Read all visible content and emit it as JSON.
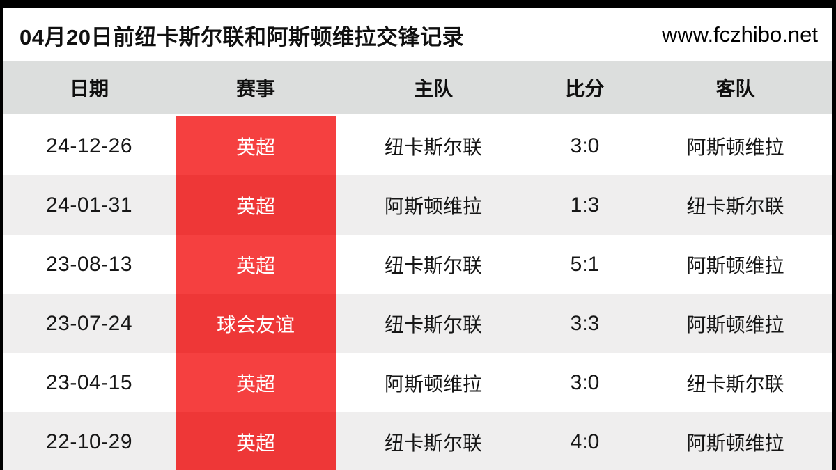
{
  "page": {
    "title": "04月20日前纽卡斯尔联和阿斯顿维拉交锋记录",
    "site": "www.fczhibo.net"
  },
  "table": {
    "columns": [
      "日期",
      "赛事",
      "主队",
      "比分",
      "客队"
    ],
    "rows": [
      {
        "date": "24-12-26",
        "competition": "英超",
        "home": "纽卡斯尔联",
        "score": "3:0",
        "away": "阿斯顿维拉"
      },
      {
        "date": "24-01-31",
        "competition": "英超",
        "home": "阿斯顿维拉",
        "score": "1:3",
        "away": "纽卡斯尔联"
      },
      {
        "date": "23-08-13",
        "competition": "英超",
        "home": "纽卡斯尔联",
        "score": "5:1",
        "away": "阿斯顿维拉"
      },
      {
        "date": "23-07-24",
        "competition": "球会友谊",
        "home": "纽卡斯尔联",
        "score": "3:3",
        "away": "阿斯顿维拉"
      },
      {
        "date": "23-04-15",
        "competition": "英超",
        "home": "阿斯顿维拉",
        "score": "3:0",
        "away": "纽卡斯尔联"
      },
      {
        "date": "22-10-29",
        "competition": "英超",
        "home": "纽卡斯尔联",
        "score": "4:0",
        "away": "阿斯顿维拉"
      }
    ]
  },
  "colors": {
    "accent_red": "#f54040",
    "accent_red_alt": "#ee3737",
    "header_bg": "#dcdedd",
    "stripe_bg": "#efeeee",
    "frame_bg": "#000000"
  }
}
